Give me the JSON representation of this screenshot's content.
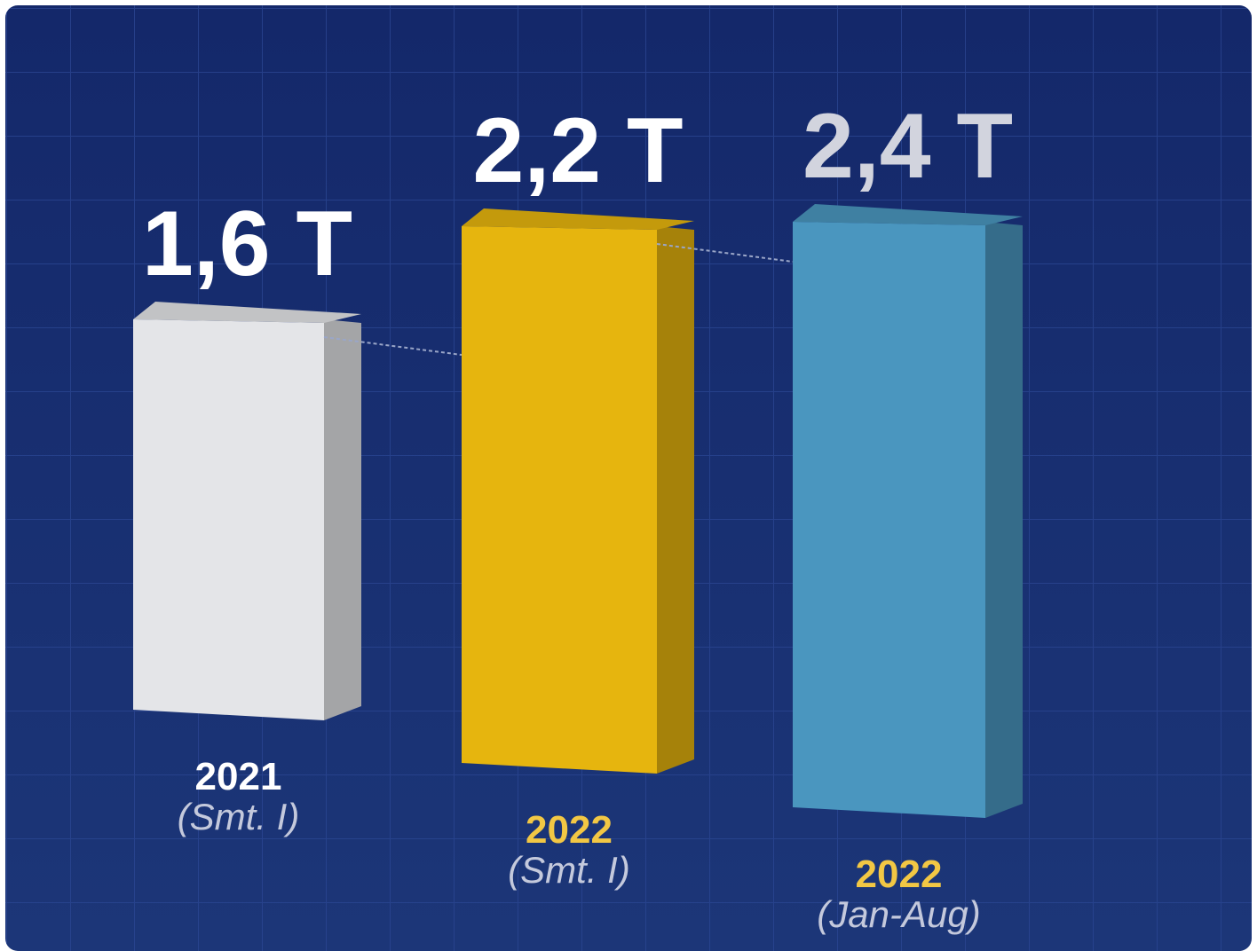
{
  "chart_data": {
    "type": "bar3d",
    "categories": [
      "2021",
      "2022",
      "2022"
    ],
    "sublabels": [
      "(Smt. I)",
      "(Smt. I)",
      "(Jan-Aug)"
    ],
    "values": [
      1.6,
      2.2,
      2.4
    ],
    "value_labels": [
      "1,6 T",
      "2,2 T",
      "2,4 T"
    ],
    "colors": [
      "#e4e5e8",
      "#e6b50e",
      "#4a96bf"
    ],
    "value_label_colors": [
      "#ffffff",
      "#ffffff",
      "#d2d4de"
    ],
    "category_colors": [
      "#ffffff",
      "#f2c744",
      "#f2c744"
    ]
  }
}
